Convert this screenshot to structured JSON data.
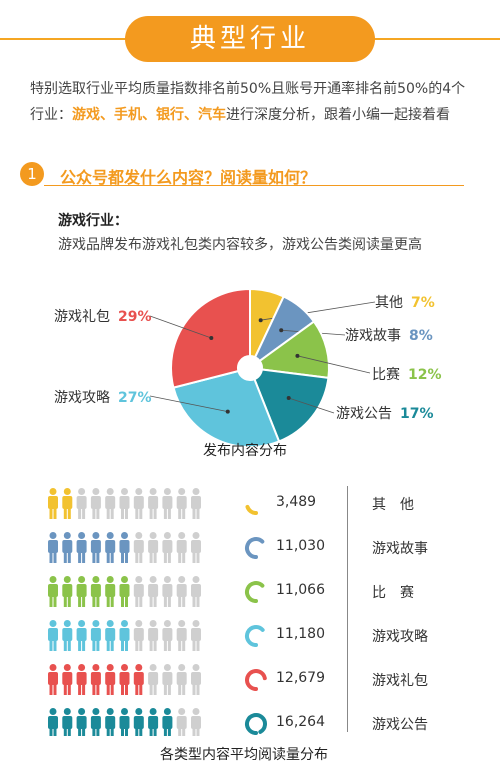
{
  "banner": {
    "title": "典型行业"
  },
  "intro": {
    "line1": "特别选取行业平均质量指数排名前50%且账号开通率排名前50%的4个",
    "line2_prefix": "行业：",
    "line2_highlight": "游戏、手机、银行、汽车",
    "line2_suffix": "进行深度分析，跟着小编一起接着看"
  },
  "section": {
    "number": "1",
    "title": "公众号都发什么内容？阅读量如何？"
  },
  "industry": {
    "heading": "游戏行业：",
    "description": "游戏品牌发布游戏礼包类内容较多，游戏公告类阅读量更高"
  },
  "colors": {
    "accent": "#f39a1f",
    "other": "#f2c230",
    "story": "#6b95c0",
    "match": "#8bc34a",
    "notice": "#1b8a99",
    "strategy": "#5fc4dc",
    "gift": "#e8514f",
    "gray": "#cfcfcf"
  },
  "chart_data": [
    {
      "type": "pie",
      "title": "发布内容分布",
      "slices": [
        {
          "label": "其他",
          "value": 7,
          "pct_label": "7%",
          "color": "#f2c230"
        },
        {
          "label": "游戏故事",
          "value": 8,
          "pct_label": "8%",
          "color": "#6b95c0"
        },
        {
          "label": "比赛",
          "value": 12,
          "pct_label": "12%",
          "color": "#8bc34a"
        },
        {
          "label": "游戏公告",
          "value": 17,
          "pct_label": "17%",
          "color": "#1b8a99"
        },
        {
          "label": "游戏攻略",
          "value": 27,
          "pct_label": "27%",
          "color": "#5fc4dc"
        },
        {
          "label": "游戏礼包",
          "value": 29,
          "pct_label": "29%",
          "color": "#e8514f"
        }
      ]
    },
    {
      "type": "bar",
      "title": "各类型内容平均阅读量分布",
      "categories": [
        "其　他",
        "游戏故事",
        "比　赛",
        "游戏攻略",
        "游戏礼包",
        "游戏公告"
      ],
      "values": [
        3489,
        11030,
        11066,
        11180,
        12679,
        16264
      ],
      "value_labels": [
        "3,489",
        "11,030",
        "11,066",
        "11,180",
        "12,679",
        "16,264"
      ],
      "colors": [
        "#f2c230",
        "#6b95c0",
        "#8bc34a",
        "#5fc4dc",
        "#e8514f",
        "#1b8a99"
      ],
      "people_per_row": 11,
      "colored_people": [
        2,
        6,
        6,
        6,
        7,
        9
      ]
    }
  ]
}
